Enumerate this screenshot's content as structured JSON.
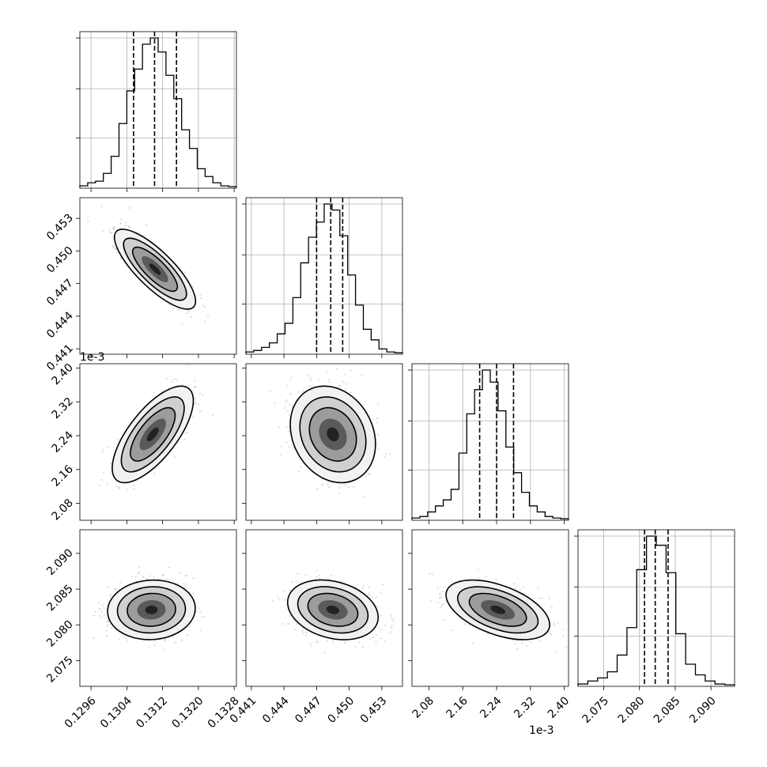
{
  "figure": {
    "type": "corner-plot",
    "grid": true,
    "legend": "none"
  },
  "chart_data": {
    "type": "corner",
    "params": [
      {
        "ticks": [
          0.1296,
          0.1304,
          0.1312,
          0.132,
          0.1328
        ],
        "tick_labels": [
          "0.1296",
          "0.1304",
          "0.1312",
          "0.1320",
          "0.1328"
        ],
        "range": [
          0.12935,
          0.13285
        ],
        "quantiles": [
          0.13055,
          0.13102,
          0.13151
        ],
        "hist": [
          0.01,
          0.03,
          0.04,
          0.09,
          0.2,
          0.41,
          0.62,
          0.76,
          0.92,
          0.96,
          0.87,
          0.72,
          0.57,
          0.37,
          0.25,
          0.12,
          0.07,
          0.03,
          0.01,
          0.005
        ],
        "offset": ""
      },
      {
        "ticks": [
          0.441,
          0.444,
          0.447,
          0.45,
          0.453
        ],
        "tick_labels": [
          "0.441",
          "0.444",
          "0.447",
          "0.450",
          "0.453"
        ],
        "range": [
          0.4405,
          0.4549
        ],
        "quantiles": [
          0.447,
          0.4483,
          0.4494
        ],
        "hist": [
          0.01,
          0.02,
          0.04,
          0.07,
          0.13,
          0.2,
          0.37,
          0.6,
          0.77,
          0.87,
          0.99,
          0.95,
          0.78,
          0.52,
          0.32,
          0.16,
          0.09,
          0.03,
          0.01,
          0.005
        ],
        "offset": ""
      },
      {
        "ticks": [
          2.08,
          2.16,
          2.24,
          2.32,
          2.4
        ],
        "tick_labels": [
          "2.08",
          "2.16",
          "2.24",
          "2.32",
          "2.40"
        ],
        "range": [
          2.04,
          2.41
        ],
        "quantiles": [
          2.2,
          2.24,
          2.28
        ],
        "hist": [
          0.01,
          0.02,
          0.05,
          0.09,
          0.13,
          0.2,
          0.44,
          0.7,
          0.86,
          0.99,
          0.91,
          0.72,
          0.48,
          0.31,
          0.18,
          0.09,
          0.05,
          0.02,
          0.01,
          0.005
        ],
        "offset": "1e-3"
      },
      {
        "ticks": [
          2.075,
          2.08,
          2.085,
          2.09
        ],
        "tick_labels": [
          "2.075",
          "2.080",
          "2.085",
          "2.090"
        ],
        "range": [
          2.0714,
          2.0933
        ],
        "quantiles": [
          2.0807,
          2.0822,
          2.084
        ],
        "hist": [
          0.01,
          0.03,
          0.05,
          0.09,
          0.2,
          0.38,
          0.76,
          0.98,
          0.92,
          0.74,
          0.34,
          0.14,
          0.07,
          0.03,
          0.01,
          0.005
        ],
        "offset": ""
      }
    ],
    "pairs": [
      {
        "row": 1,
        "col": 0,
        "mean": [
          0.13103,
          0.44832
        ],
        "std": [
          0.00037,
          0.0015
        ],
        "corr": -0.8
      },
      {
        "row": 2,
        "col": 0,
        "mean": [
          0.13098,
          2.243
        ],
        "std": [
          0.00037,
          0.0466
        ],
        "corr": 0.7
      },
      {
        "row": 2,
        "col": 1,
        "mean": [
          0.4485,
          2.243
        ],
        "std": [
          0.0016,
          0.0466
        ],
        "corr": -0.2
      },
      {
        "row": 3,
        "col": 0,
        "mean": [
          0.13095,
          2.0821
        ],
        "std": [
          0.0004,
          0.0017
        ],
        "corr": 0.05
      },
      {
        "row": 3,
        "col": 1,
        "mean": [
          0.4485,
          2.0821
        ],
        "std": [
          0.0017,
          0.0017
        ],
        "corr": -0.25
      },
      {
        "row": 3,
        "col": 2,
        "mean": [
          2.243,
          2.0821
        ],
        "std": [
          0.05,
          0.0017
        ],
        "corr": -0.5
      }
    ]
  }
}
